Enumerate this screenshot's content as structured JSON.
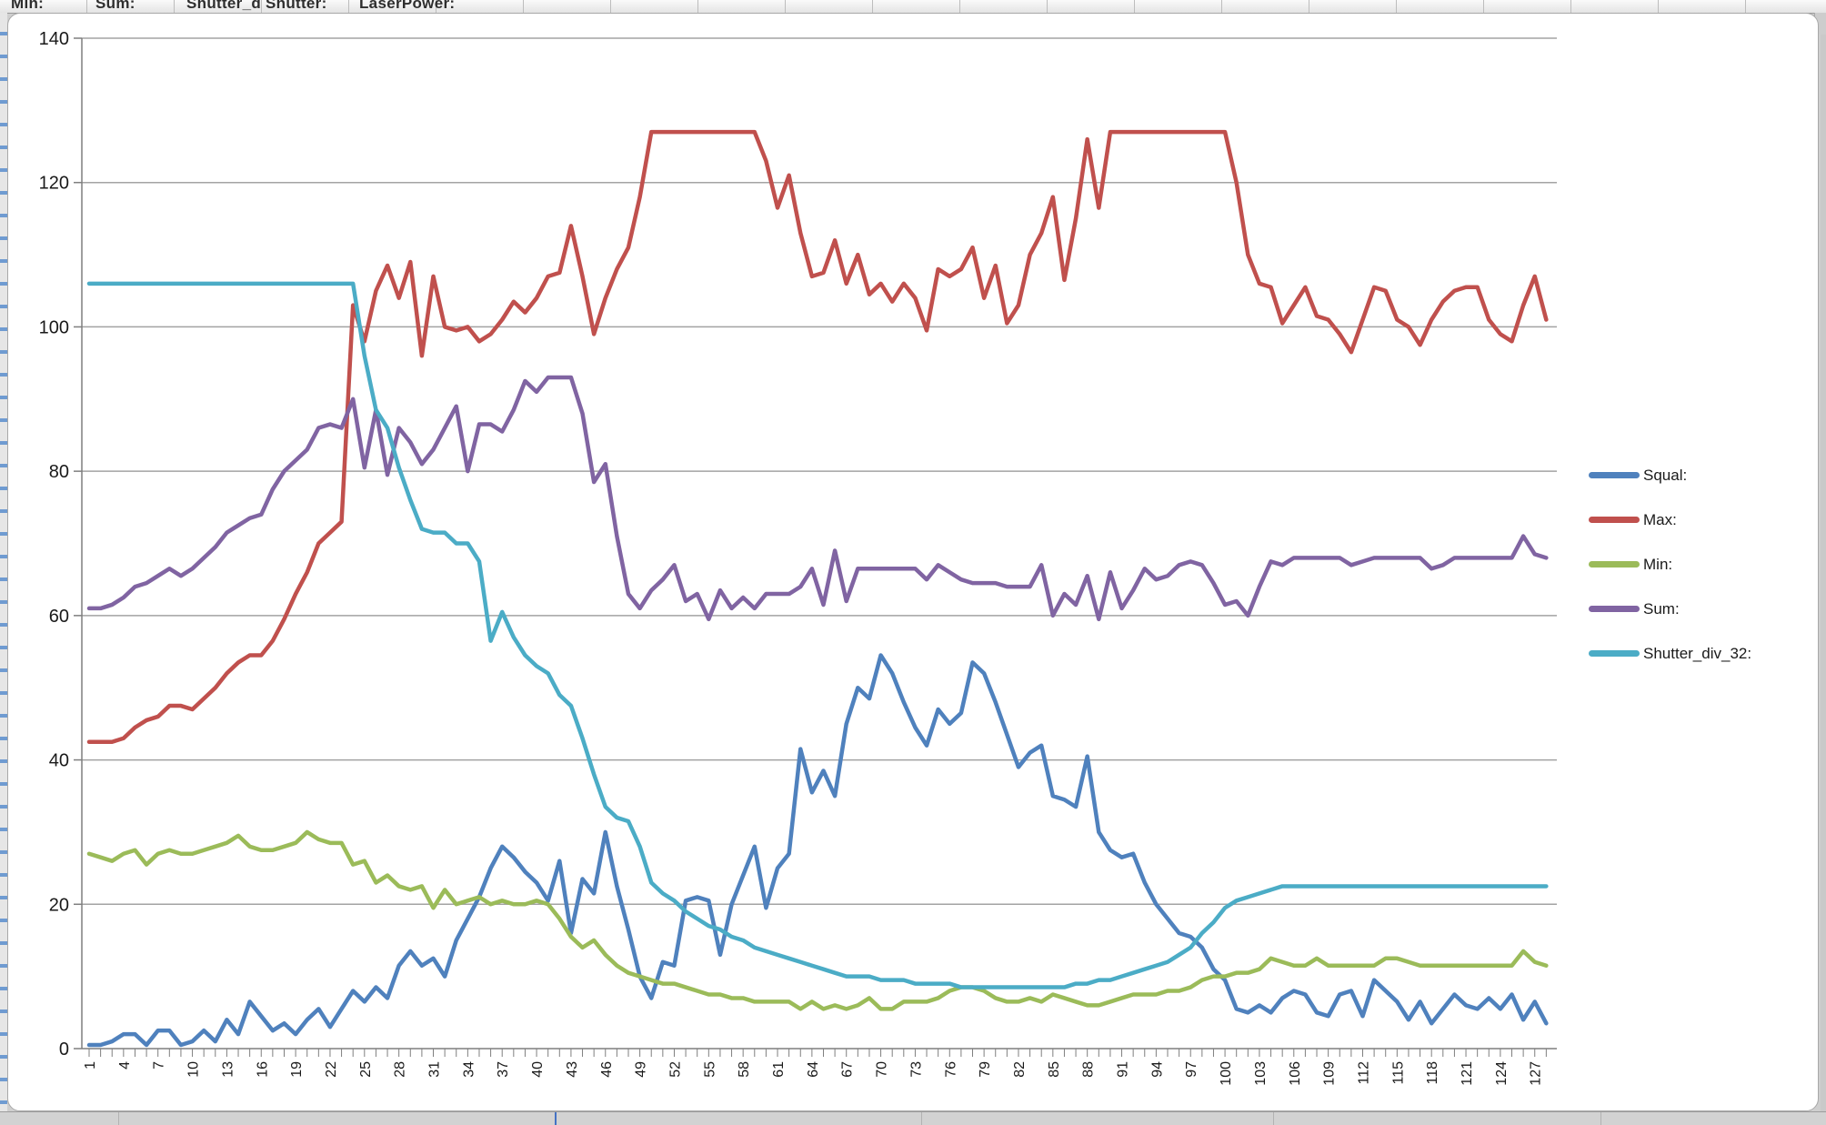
{
  "spreadsheet": {
    "header_cells": [
      "Min:",
      "Sum:",
      "Shutter_d",
      "Shutter:",
      "LaserPower:"
    ]
  },
  "chart_data": {
    "type": "line",
    "title": "",
    "grid": true,
    "legend_position": "right",
    "x_start": 1,
    "x_count": 128,
    "x_label_every": 3,
    "y_axis": {
      "min": 0,
      "max": 140,
      "step": 20
    },
    "series": [
      {
        "name": "Squal:",
        "color": "#4F81BD",
        "values": [
          0.5,
          0.5,
          1,
          2,
          2,
          0.5,
          2.5,
          2.5,
          0.5,
          1,
          2.5,
          1,
          4,
          2,
          6.5,
          4.5,
          2.5,
          3.5,
          2,
          4,
          5.5,
          3,
          5.5,
          8,
          6.5,
          8.5,
          7,
          11.5,
          13.5,
          11.5,
          12.5,
          10,
          15,
          18,
          21,
          25,
          28,
          26.5,
          24.5,
          23,
          20.5,
          26,
          16,
          23.5,
          21.5,
          30,
          22.5,
          16.5,
          10,
          7,
          12,
          11.5,
          20.5,
          21,
          20.5,
          13,
          20,
          24,
          28,
          19.5,
          25,
          27,
          41.5,
          35.5,
          38.5,
          35,
          45,
          50,
          48.5,
          54.5,
          52,
          48,
          44.5,
          42,
          47,
          45,
          46.5,
          53.5,
          52,
          48,
          43.5,
          39,
          41,
          42,
          35,
          34.5,
          33.5,
          40.5,
          30,
          27.5,
          26.5,
          27,
          23,
          20,
          18,
          16,
          15.5,
          14,
          11,
          9.5,
          5.5,
          5,
          6,
          5,
          7,
          8,
          7.5,
          5,
          4.5,
          7.5,
          8,
          4.5,
          9.5,
          8,
          6.5,
          4,
          6.5,
          3.5,
          5.5,
          7.5,
          6,
          5.5,
          7,
          5.5,
          7.5,
          4,
          6.5,
          3.5
        ]
      },
      {
        "name": "Max:",
        "color": "#C0504D",
        "values": [
          42.5,
          42.5,
          42.5,
          43,
          44.5,
          45.5,
          46,
          47.5,
          47.5,
          47,
          48.5,
          50,
          52,
          53.5,
          54.5,
          54.5,
          56.5,
          59.5,
          63,
          66,
          70,
          71.5,
          73,
          103,
          98,
          105,
          108.5,
          104,
          109,
          96,
          107,
          100,
          99.5,
          100,
          98,
          99,
          101,
          103.5,
          102,
          104,
          107,
          107.5,
          114,
          107,
          99,
          104,
          108,
          111,
          118,
          127,
          127,
          127,
          127,
          127,
          127,
          127,
          127,
          127,
          127,
          123,
          116.5,
          121,
          113,
          107,
          107.5,
          112,
          106,
          110,
          104.5,
          106,
          103.5,
          106,
          104,
          99.5,
          108,
          107,
          108,
          111,
          104,
          108.5,
          100.5,
          103,
          110,
          113,
          118,
          106.5,
          115,
          126,
          116.5,
          127,
          127,
          127,
          127,
          127,
          127,
          127,
          127,
          127,
          127,
          127,
          120,
          110,
          106,
          105.5,
          100.5,
          103,
          105.5,
          101.5,
          101,
          99,
          96.5,
          101,
          105.5,
          105,
          101,
          100,
          97.5,
          101,
          103.5,
          105,
          105.5,
          105.5,
          101,
          99,
          98,
          103,
          107,
          101
        ]
      },
      {
        "name": "Min:",
        "color": "#9BBB59",
        "values": [
          27,
          26.5,
          26,
          27,
          27.5,
          25.5,
          27,
          27.5,
          27,
          27,
          27.5,
          28,
          28.5,
          29.5,
          28,
          27.5,
          27.5,
          28,
          28.5,
          30,
          29,
          28.5,
          28.5,
          25.5,
          26,
          23,
          24,
          22.5,
          22,
          22.5,
          19.5,
          22,
          20,
          20.5,
          21,
          20,
          20.5,
          20,
          20,
          20.5,
          20,
          18,
          15.5,
          14,
          15,
          13,
          11.5,
          10.5,
          10,
          9.5,
          9,
          9,
          8.5,
          8,
          7.5,
          7.5,
          7,
          7,
          6.5,
          6.5,
          6.5,
          6.5,
          5.5,
          6.5,
          5.5,
          6,
          5.5,
          6,
          7,
          5.5,
          5.5,
          6.5,
          6.5,
          6.5,
          7,
          8,
          8.5,
          8.5,
          8,
          7,
          6.5,
          6.5,
          7,
          6.5,
          7.5,
          7,
          6.5,
          6,
          6,
          6.5,
          7,
          7.5,
          7.5,
          7.5,
          8,
          8,
          8.5,
          9.5,
          10,
          10,
          10.5,
          10.5,
          11,
          12.5,
          12,
          11.5,
          11.5,
          12.5,
          11.5,
          11.5,
          11.5,
          11.5,
          11.5,
          12.5,
          12.5,
          12,
          11.5,
          11.5,
          11.5,
          11.5,
          11.5,
          11.5,
          11.5,
          11.5,
          11.5,
          13.5,
          12,
          11.5
        ]
      },
      {
        "name": "Sum:",
        "color": "#8064A2",
        "values": [
          61,
          61,
          61.5,
          62.5,
          64,
          64.5,
          65.5,
          66.5,
          65.5,
          66.5,
          68,
          69.5,
          71.5,
          72.5,
          73.5,
          74,
          77.5,
          80,
          81.5,
          83,
          86,
          86.5,
          86,
          90,
          80.5,
          88.5,
          79.5,
          86,
          84,
          81,
          83,
          86,
          89,
          80,
          86.5,
          86.5,
          85.5,
          88.5,
          92.5,
          91,
          93,
          93,
          93,
          88,
          78.5,
          81,
          71,
          63,
          61,
          63.5,
          65,
          67,
          62,
          63,
          59.5,
          63.5,
          61,
          62.5,
          61,
          63,
          63,
          63,
          64,
          66.5,
          61.5,
          69,
          62,
          66.5,
          66.5,
          66.5,
          66.5,
          66.5,
          66.5,
          65,
          67,
          66,
          65,
          64.5,
          64.5,
          64.5,
          64,
          64,
          64,
          67,
          60,
          63,
          61.5,
          65.5,
          59.5,
          66,
          61,
          63.5,
          66.5,
          65,
          65.5,
          67,
          67.5,
          67,
          64.5,
          61.5,
          62,
          60,
          64,
          67.5,
          67,
          68,
          68,
          68,
          68,
          68,
          67,
          67.5,
          68,
          68,
          68,
          68,
          68,
          66.5,
          67,
          68,
          68,
          68,
          68,
          68,
          68,
          71,
          68.5,
          68
        ]
      },
      {
        "name": "Shutter_div_32:",
        "color": "#4BACC6",
        "values": [
          106,
          106,
          106,
          106,
          106,
          106,
          106,
          106,
          106,
          106,
          106,
          106,
          106,
          106,
          106,
          106,
          106,
          106,
          106,
          106,
          106,
          106,
          106,
          106,
          96,
          88.5,
          86,
          80.5,
          76,
          72,
          71.5,
          71.5,
          70,
          70,
          67.5,
          56.5,
          60.5,
          57,
          54.5,
          53,
          52,
          49,
          47.5,
          43,
          38,
          33.5,
          32,
          31.5,
          28,
          23,
          21.5,
          20.5,
          19,
          18,
          17,
          16.5,
          15.5,
          15,
          14,
          13.5,
          13,
          12.5,
          12,
          11.5,
          11,
          10.5,
          10,
          10,
          10,
          9.5,
          9.5,
          9.5,
          9,
          9,
          9,
          9,
          8.5,
          8.5,
          8.5,
          8.5,
          8.5,
          8.5,
          8.5,
          8.5,
          8.5,
          8.5,
          9,
          9,
          9.5,
          9.5,
          10,
          10.5,
          11,
          11.5,
          12,
          13,
          14,
          16,
          17.5,
          19.5,
          20.5,
          21,
          21.5,
          22,
          22.5,
          22.5,
          22.5,
          22.5,
          22.5,
          22.5,
          22.5,
          22.5,
          22.5,
          22.5,
          22.5,
          22.5,
          22.5,
          22.5,
          22.5,
          22.5,
          22.5,
          22.5,
          22.5,
          22.5,
          22.5,
          22.5,
          22.5,
          22.5
        ]
      }
    ]
  }
}
